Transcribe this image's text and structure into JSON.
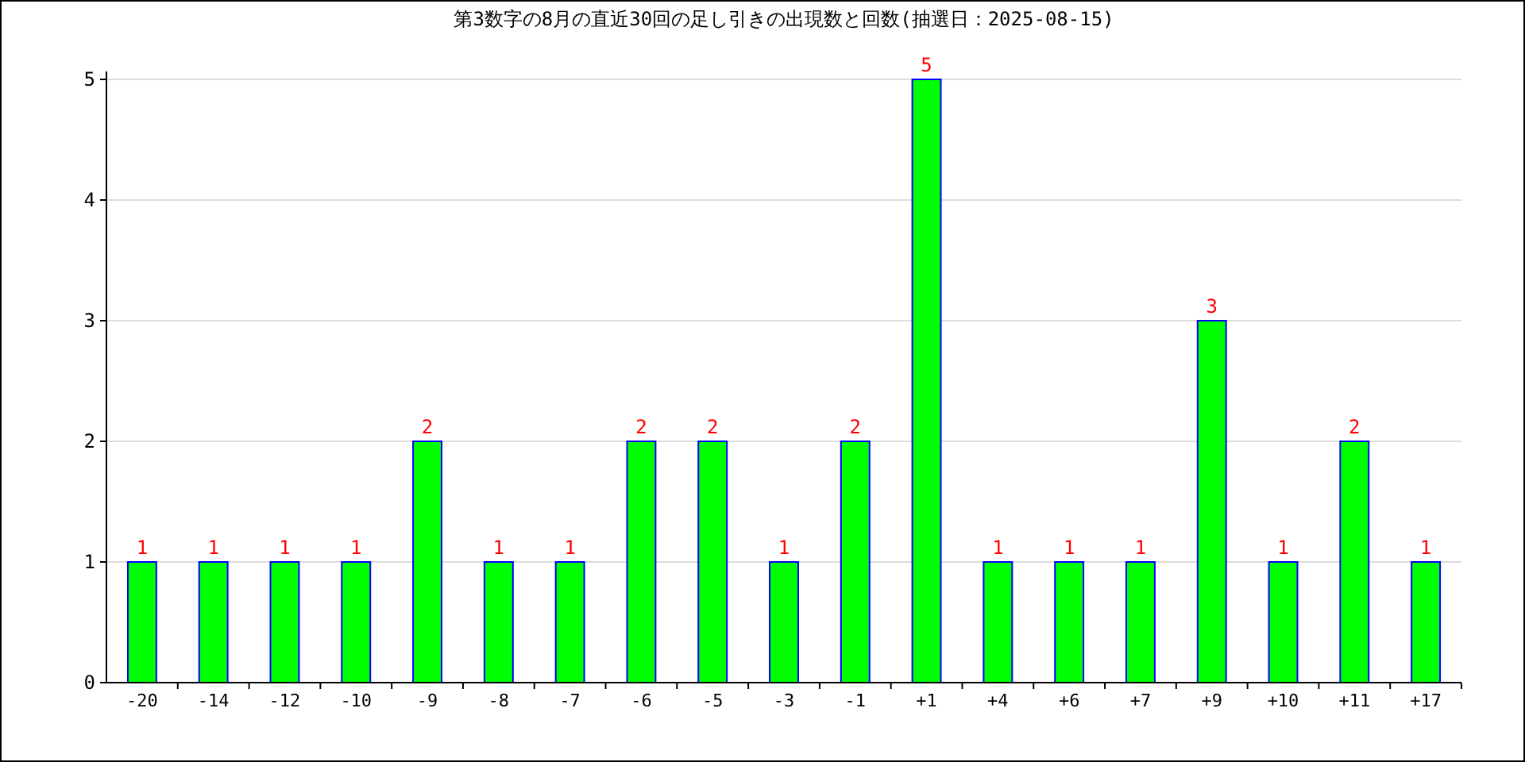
{
  "chart_data": {
    "type": "bar",
    "title": "第3数字の8月の直近30回の足し引きの出現数と回数(抽選日：2025-08-15)",
    "categories": [
      "-20",
      "-14",
      "-12",
      "-10",
      "-9",
      "-8",
      "-7",
      "-6",
      "-5",
      "-3",
      "-1",
      "+1",
      "+4",
      "+6",
      "+7",
      "+9",
      "+10",
      "+11",
      "+17"
    ],
    "values": [
      1,
      1,
      1,
      1,
      2,
      1,
      1,
      2,
      2,
      1,
      2,
      5,
      1,
      1,
      1,
      3,
      1,
      2,
      1
    ],
    "color": "#00ff00",
    "ylim": [
      0,
      5
    ],
    "yticks": [
      0,
      1,
      2,
      3,
      4,
      5
    ],
    "grid": "y",
    "data_labels": true
  }
}
